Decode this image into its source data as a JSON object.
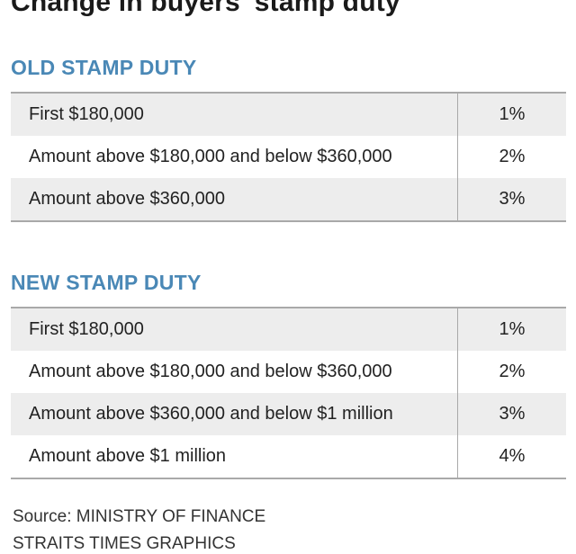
{
  "title": "Change in buyers' stamp duty",
  "old_section": {
    "heading": "OLD STAMP DUTY",
    "rows": [
      {
        "label": "First $180,000",
        "rate": "1%"
      },
      {
        "label": "Amount above $180,000 and below $360,000",
        "rate": "2%"
      },
      {
        "label": "Amount above $360,000",
        "rate": "3%"
      }
    ]
  },
  "new_section": {
    "heading": "NEW STAMP DUTY",
    "rows": [
      {
        "label": "First $180,000",
        "rate": "1%"
      },
      {
        "label": "Amount above $180,000 and below $360,000",
        "rate": "2%"
      },
      {
        "label": "Amount above $360,000 and below $1 million",
        "rate": "3%"
      },
      {
        "label": "Amount above $1 million",
        "rate": "4%"
      }
    ]
  },
  "footer": {
    "source": "Source: MINISTRY OF FINANCE",
    "credit": "STRAITS TIMES GRAPHICS"
  }
}
